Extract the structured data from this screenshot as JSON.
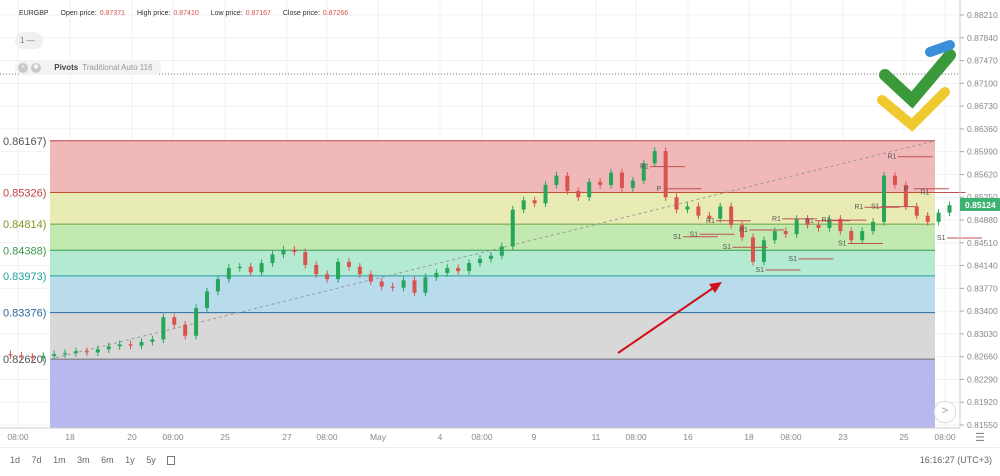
{
  "header": {
    "symbol": "EURGBP",
    "open_label": "Open price:",
    "open": "0.87371",
    "high_label": "High price:",
    "high": "0.87410",
    "low_label": "Low price:",
    "low": "0.87167",
    "close_label": "Close price:",
    "close": "0.87266"
  },
  "interval_pill": "1 —",
  "indicator": {
    "name": "Pivots",
    "params": "Traditional Auto 116",
    "close_icon": "close-circle-icon",
    "settings_icon": "gear-icon"
  },
  "footer": {
    "ranges": [
      "1d",
      "7d",
      "1m",
      "3m",
      "6m",
      "1y",
      "5y"
    ],
    "calendar_icon": "calendar-icon",
    "clock": "16:16:27 (UTC+3)"
  },
  "colors": {
    "up": "#26a65b",
    "down": "#d9534f",
    "current_price_bg": "#3cb371",
    "arrow": "#d0101a"
  },
  "chart_data": {
    "type": "candlestick",
    "symbol": "EURGBP",
    "y_ticks": [
      "0.88210",
      "0.87840",
      "0.87470",
      "0.87100",
      "0.86730",
      "0.86360",
      "0.85990",
      "0.85620",
      "0.85250",
      "0.84880",
      "0.84510",
      "0.84140",
      "0.83770",
      "0.83400",
      "0.83030",
      "0.82660",
      "0.82290",
      "0.81920",
      "0.81550"
    ],
    "ylim": [
      0.8155,
      0.8821
    ],
    "x_ticks": [
      "08:00",
      "18",
      "20",
      "08:00",
      "25",
      "27",
      "08:00",
      "May",
      "4",
      "08:00",
      "9",
      "11",
      "08:00",
      "16",
      "18",
      "08:00",
      "23",
      "25",
      "08:00"
    ],
    "current_price": "0.85124",
    "fib_levels": [
      {
        "label": "0.86167",
        "value": 0.86167,
        "color": "#f0b8b8",
        "line": "#c04040"
      },
      {
        "label": "0.85326",
        "value": 0.85326,
        "color": "#e8ecb4",
        "line": "#c05030"
      },
      {
        "label": "0.84814",
        "value": 0.84814,
        "color": "#c2eab0",
        "line": "#70a040"
      },
      {
        "label": "0.84388",
        "value": 0.84388,
        "color": "#b5ead2",
        "line": "#3a9a50"
      },
      {
        "label": "0.83973",
        "value": 0.83973,
        "color": "#b8dcec",
        "line": "#20a0a0"
      },
      {
        "label": "0.83376",
        "value": 0.83376,
        "color": "#d8d8d8",
        "line": "#2a6aa0"
      },
      {
        "label": "0.82620",
        "value": 0.8262,
        "color": "#b8b8ee",
        "line": "#707070"
      }
    ],
    "fib_label_colors": [
      "#555",
      "#c04040",
      "#7a9a20",
      "#3a9a50",
      "#20a0a0",
      "#2a6aa0",
      "#555"
    ],
    "closes": [
      0.8268,
      0.8266,
      0.8264,
      0.8267,
      0.827,
      0.8272,
      0.8275,
      0.8273,
      0.8278,
      0.8283,
      0.8286,
      0.8284,
      0.829,
      0.8294,
      0.833,
      0.8318,
      0.83,
      0.8345,
      0.8372,
      0.8392,
      0.841,
      0.8412,
      0.8403,
      0.8418,
      0.8432,
      0.844,
      0.8436,
      0.8415,
      0.84,
      0.8392,
      0.842,
      0.8412,
      0.84,
      0.8388,
      0.838,
      0.8378,
      0.839,
      0.837,
      0.8395,
      0.8402,
      0.841,
      0.8405,
      0.8418,
      0.8425,
      0.843,
      0.8445,
      0.8505,
      0.852,
      0.8515,
      0.8545,
      0.856,
      0.8535,
      0.8525,
      0.855,
      0.8545,
      0.8565,
      0.854,
      0.8552,
      0.858,
      0.86,
      0.8525,
      0.8505,
      0.851,
      0.8495,
      0.849,
      0.851,
      0.848,
      0.846,
      0.842,
      0.8455,
      0.847,
      0.8465,
      0.849,
      0.848,
      0.8475,
      0.849,
      0.847,
      0.8455,
      0.847,
      0.8485,
      0.856,
      0.8545,
      0.851,
      0.8495,
      0.8485,
      0.85,
      0.8512
    ],
    "pivot_labels": [
      {
        "text": "R1",
        "price": 0.8578
      },
      {
        "text": "P",
        "price": 0.8542
      },
      {
        "text": "S1",
        "price": 0.8464
      },
      {
        "text": "S1",
        "price": 0.8468
      },
      {
        "text": "R1",
        "price": 0.849
      },
      {
        "text": "S1",
        "price": 0.8447
      },
      {
        "text": "R1",
        "price": 0.8475
      },
      {
        "text": "S1",
        "price": 0.841
      },
      {
        "text": "R1",
        "price": 0.8493
      },
      {
        "text": "S1",
        "price": 0.8428
      },
      {
        "text": "R1",
        "price": 0.849
      },
      {
        "text": "R1",
        "price": 0.8491
      },
      {
        "text": "S1",
        "price": 0.8453
      },
      {
        "text": "R1",
        "price": 0.8512
      },
      {
        "text": "S1",
        "price": 0.8513
      },
      {
        "text": "R1",
        "price": 0.8594
      },
      {
        "text": "P",
        "price": 0.8542
      },
      {
        "text": "R1",
        "price": 0.8536
      },
      {
        "text": "S1",
        "price": 0.8462
      }
    ]
  }
}
